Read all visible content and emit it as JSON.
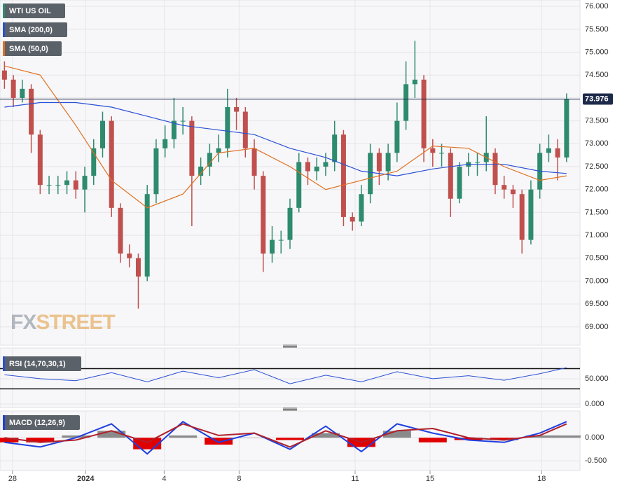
{
  "logo": {
    "prefix": "FX",
    "suffix": "STREET"
  },
  "chart_data": [
    {
      "type": "candlestick",
      "name": "WTI US OIL",
      "up_color": "#2e8b6e",
      "down_color": "#c0504d",
      "x": [
        0,
        1,
        2,
        3,
        4,
        5,
        6,
        7,
        8,
        9,
        10,
        11,
        12,
        13,
        14,
        15,
        16,
        17,
        18,
        19,
        20,
        21,
        22,
        23,
        24,
        25,
        26,
        27,
        28,
        29,
        30,
        31,
        32,
        33,
        34,
        35,
        36,
        37,
        38,
        39,
        40,
        41,
        42,
        43,
        44,
        45,
        46,
        47,
        48,
        49,
        50,
        51,
        52,
        53,
        54,
        55,
        56,
        57,
        58,
        59,
        60,
        61,
        62,
        63
      ],
      "open": [
        74.6,
        74.4,
        74.0,
        74.2,
        73.2,
        72.1,
        72.1,
        72.1,
        72.2,
        72.0,
        72.3,
        72.9,
        73.5,
        71.6,
        70.6,
        70.5,
        70.1,
        71.9,
        72.9,
        73.1,
        73.5,
        73.5,
        72.3,
        72.5,
        72.8,
        72.9,
        73.8,
        73.7,
        72.9,
        72.3,
        70.6,
        70.9,
        70.9,
        71.6,
        72.6,
        72.4,
        72.5,
        72.6,
        73.2,
        71.4,
        71.3,
        71.9,
        72.8,
        72.4,
        72.8,
        73.5,
        74.3,
        74.4,
        72.9,
        72.8,
        72.8,
        71.8,
        72.5,
        72.6,
        72.6,
        72.8,
        72.1,
        72.0,
        71.9,
        70.9,
        72.0,
        72.8,
        72.9,
        72.7
      ],
      "high": [
        74.8,
        74.5,
        74.4,
        74.3,
        73.3,
        72.3,
        72.3,
        72.4,
        72.4,
        72.5,
        73.1,
        73.7,
        73.6,
        71.7,
        70.8,
        70.6,
        72.1,
        73.1,
        73.4,
        74.0,
        73.8,
        73.6,
        72.7,
        73.0,
        73.2,
        74.2,
        74.0,
        73.8,
        73.1,
        72.4,
        71.2,
        71.1,
        71.8,
        72.8,
        72.7,
        72.7,
        72.8,
        73.5,
        73.3,
        71.5,
        72.1,
        73.0,
        72.9,
        73.0,
        73.9,
        74.8,
        75.25,
        74.5,
        73.1,
        73.0,
        72.9,
        72.6,
        72.8,
        72.8,
        73.6,
        72.9,
        72.3,
        72.1,
        72.0,
        72.2,
        73.0,
        73.2,
        73.1,
        74.1
      ],
      "low": [
        74.2,
        73.8,
        73.9,
        72.8,
        71.9,
        71.9,
        71.9,
        71.9,
        71.8,
        71.5,
        72.1,
        72.7,
        71.4,
        70.4,
        70.3,
        69.4,
        70.0,
        71.7,
        72.7,
        72.9,
        73.2,
        71.2,
        72.1,
        72.3,
        72.6,
        72.7,
        73.3,
        72.7,
        72.0,
        70.2,
        70.4,
        70.6,
        70.7,
        71.5,
        72.1,
        72.2,
        72.3,
        72.4,
        71.2,
        71.1,
        71.2,
        71.7,
        72.1,
        72.2,
        72.6,
        73.3,
        74.0,
        72.6,
        72.5,
        72.5,
        71.4,
        71.7,
        72.3,
        72.3,
        72.4,
        71.9,
        71.8,
        71.6,
        70.6,
        70.8,
        71.8,
        72.6,
        72.2,
        72.6
      ],
      "close": [
        74.4,
        74.0,
        74.2,
        73.2,
        72.1,
        72.1,
        72.1,
        72.2,
        72.0,
        72.3,
        72.9,
        73.5,
        71.6,
        70.6,
        70.5,
        70.1,
        71.9,
        72.9,
        73.1,
        73.5,
        73.5,
        72.3,
        72.5,
        72.8,
        72.9,
        73.8,
        73.7,
        72.9,
        72.3,
        70.6,
        70.9,
        70.9,
        71.6,
        72.6,
        72.4,
        72.5,
        72.6,
        73.2,
        71.4,
        71.3,
        71.9,
        72.8,
        72.4,
        72.8,
        73.5,
        74.3,
        74.4,
        72.9,
        72.8,
        72.8,
        71.8,
        72.5,
        72.6,
        72.6,
        72.8,
        72.1,
        72.0,
        71.9,
        70.9,
        72.0,
        72.8,
        72.9,
        72.7,
        73.976
      ],
      "last_price": {
        "value": 73.976,
        "label": "73.976"
      },
      "series": [
        {
          "name": "SMA (200,0)",
          "color": "#2a4fd6",
          "x": [
            0,
            4,
            8,
            12,
            16,
            20,
            24,
            28,
            32,
            36,
            40,
            44,
            48,
            52,
            56,
            60,
            63
          ],
          "values": [
            73.8,
            73.9,
            73.9,
            73.8,
            73.6,
            73.4,
            73.3,
            73.2,
            72.9,
            72.7,
            72.4,
            72.3,
            72.45,
            72.55,
            72.55,
            72.4,
            72.35
          ]
        },
        {
          "name": "SMA (50,0)",
          "color": "#e07020",
          "x": [
            0,
            4,
            8,
            12,
            16,
            20,
            24,
            28,
            32,
            36,
            40,
            44,
            48,
            52,
            56,
            60,
            63
          ],
          "values": [
            74.7,
            74.5,
            73.4,
            72.2,
            71.6,
            71.9,
            72.8,
            72.9,
            72.5,
            72.0,
            72.2,
            72.4,
            72.95,
            72.9,
            72.5,
            72.2,
            72.3
          ]
        }
      ],
      "xlim": [
        -0.5,
        64.5
      ],
      "ylim": [
        68.6,
        76.14
      ],
      "yticks": [
        {
          "value": 76,
          "label": "76.000"
        },
        {
          "value": 75.5,
          "label": "75.500"
        },
        {
          "value": 75,
          "label": "75.000"
        },
        {
          "value": 74.5,
          "label": "74.500"
        },
        {
          "value": 74,
          "label": "74.000"
        },
        {
          "value": 73.5,
          "label": "73.500"
        },
        {
          "value": 73,
          "label": "73.000"
        },
        {
          "value": 72.5,
          "label": "72.500"
        },
        {
          "value": 72,
          "label": "72.000"
        },
        {
          "value": 71.5,
          "label": "71.500"
        },
        {
          "value": 71,
          "label": "71.000"
        },
        {
          "value": 70.5,
          "label": "70.500"
        },
        {
          "value": 70,
          "label": "70.000"
        },
        {
          "value": 69.5,
          "label": "69.500"
        },
        {
          "value": 69,
          "label": "69.000"
        }
      ],
      "grid": true
    },
    {
      "type": "line",
      "title": "RSI (14,70,30,1)",
      "levels": [
        70,
        30
      ],
      "series": [
        {
          "color": "#2a4fd6",
          "x": [
            0,
            4,
            8,
            12,
            16,
            20,
            24,
            28,
            32,
            36,
            40,
            44,
            48,
            52,
            56,
            60,
            63
          ],
          "values": [
            58,
            50,
            46,
            62,
            44,
            65,
            52,
            68,
            40,
            57,
            44,
            64,
            50,
            56,
            47,
            60,
            72
          ]
        }
      ],
      "xlim": [
        -0.5,
        64.5
      ],
      "ylim": [
        -7,
        111
      ],
      "yticks": [
        {
          "value": 50,
          "label": "50.000"
        },
        {
          "value": 0,
          "label": "0.000"
        }
      ],
      "grid": true
    },
    {
      "type": "combo",
      "title": "MACD (12,26,9)",
      "series": [
        {
          "kind": "bar",
          "up_color": "#8a8a8a",
          "down_color": "#e00000",
          "x": [
            0,
            4,
            8,
            12,
            16,
            20,
            24,
            28,
            32,
            36,
            40,
            44,
            48,
            52,
            56,
            60,
            63
          ],
          "values": [
            -0.1,
            -0.1,
            0.05,
            0.15,
            -0.25,
            0.05,
            -0.15,
            0.0,
            -0.05,
            0.1,
            -0.2,
            0.15,
            -0.1,
            -0.05,
            -0.05,
            0.05,
            0.05
          ]
        },
        {
          "kind": "line",
          "color": "#1f3fe0",
          "x": [
            0,
            4,
            8,
            12,
            16,
            20,
            24,
            28,
            32,
            36,
            40,
            44,
            48,
            52,
            56,
            60,
            63
          ],
          "values": [
            -0.1,
            -0.2,
            0.0,
            0.3,
            -0.35,
            0.35,
            -0.1,
            0.1,
            -0.25,
            0.25,
            -0.3,
            0.3,
            0.1,
            -0.05,
            -0.1,
            0.1,
            0.35
          ]
        },
        {
          "kind": "line",
          "color": "#b0202a",
          "x": [
            0,
            4,
            8,
            12,
            16,
            20,
            24,
            28,
            32,
            36,
            40,
            44,
            48,
            52,
            56,
            60,
            63
          ],
          "values": [
            0.0,
            -0.1,
            -0.05,
            0.15,
            -0.1,
            0.3,
            0.05,
            0.1,
            -0.2,
            0.15,
            -0.1,
            0.15,
            0.2,
            0.0,
            -0.05,
            0.05,
            0.3
          ]
        }
      ],
      "xlim": [
        -0.5,
        64.5
      ],
      "ylim": [
        -0.71,
        0.58
      ],
      "yticks": [
        {
          "value": 0,
          "label": "0.000"
        },
        {
          "value": -0.5,
          "label": "-0.500"
        }
      ],
      "grid": true,
      "xticks": [
        {
          "value": 0.9,
          "label": "28"
        },
        {
          "value": 9.1,
          "label": "2024"
        },
        {
          "value": 17.9,
          "label": "4"
        },
        {
          "value": 26.3,
          "label": "8"
        },
        {
          "value": 39.3,
          "label": "11"
        },
        {
          "value": 47.7,
          "label": "15"
        },
        {
          "value": 60.2,
          "label": "18"
        }
      ]
    }
  ]
}
